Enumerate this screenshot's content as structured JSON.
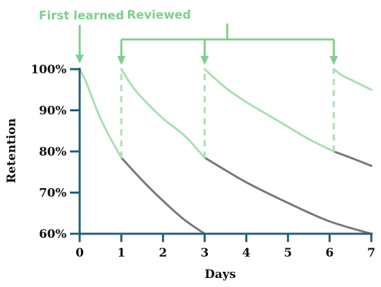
{
  "chart_data": {
    "type": "line",
    "xlabel": "Days",
    "ylabel": "Retention",
    "xlim": [
      0,
      7
    ],
    "ylim": [
      60,
      100
    ],
    "x_ticks": [
      0,
      1,
      2,
      3,
      4,
      5,
      6,
      7
    ],
    "y_ticks": [
      60,
      70,
      80,
      90,
      100
    ],
    "y_tick_labels": [
      "60%",
      "70%",
      "80%",
      "90%",
      "100%"
    ],
    "grid": false,
    "annotations": [
      {
        "text": "First learned",
        "x": 0
      },
      {
        "text": "Reviewed",
        "x_points": [
          1,
          3,
          6.1
        ]
      }
    ],
    "series": [
      {
        "role": "learned",
        "style": "green",
        "points": [
          [
            0,
            100
          ],
          [
            0.15,
            97
          ],
          [
            0.3,
            93
          ],
          [
            0.5,
            88
          ],
          [
            0.75,
            83
          ],
          [
            1,
            78.5
          ]
        ]
      },
      {
        "role": "decay-after-learning",
        "style": "grey",
        "points": [
          [
            1,
            78.5
          ],
          [
            1.5,
            73
          ],
          [
            2,
            68
          ],
          [
            2.5,
            63.5
          ],
          [
            3,
            60
          ]
        ]
      },
      {
        "role": "after-review-1",
        "style": "green",
        "points": [
          [
            1,
            100
          ],
          [
            1.25,
            96
          ],
          [
            1.5,
            93
          ],
          [
            2,
            88
          ],
          [
            2.5,
            84
          ],
          [
            3,
            78.5
          ]
        ]
      },
      {
        "role": "decay-after-review-1",
        "style": "grey",
        "points": [
          [
            3,
            78.5
          ],
          [
            4,
            72.5
          ],
          [
            5,
            67.5
          ],
          [
            6,
            63
          ],
          [
            7,
            60
          ]
        ]
      },
      {
        "role": "after-review-2",
        "style": "green",
        "points": [
          [
            3,
            100
          ],
          [
            3.5,
            95.5
          ],
          [
            4,
            92
          ],
          [
            4.5,
            89
          ],
          [
            5,
            86
          ],
          [
            5.5,
            83
          ],
          [
            6.1,
            80
          ]
        ]
      },
      {
        "role": "decay-after-review-2",
        "style": "grey",
        "points": [
          [
            6.1,
            80
          ],
          [
            6.5,
            78.5
          ],
          [
            7,
            76.5
          ]
        ]
      },
      {
        "role": "after-review-3",
        "style": "green",
        "points": [
          [
            6.1,
            100
          ],
          [
            6.3,
            98.5
          ],
          [
            6.7,
            96.5
          ],
          [
            7,
            95
          ]
        ]
      }
    ],
    "review_drops": [
      {
        "x": 1,
        "from": 78.5,
        "to": 100
      },
      {
        "x": 3,
        "from": 78.5,
        "to": 100
      },
      {
        "x": 6.1,
        "from": 80,
        "to": 100
      }
    ]
  },
  "colors": {
    "axis": "#1f5f7a",
    "green": "#a8dfb0",
    "annotation_green": "#7fcf8c",
    "grey": "#777777"
  }
}
